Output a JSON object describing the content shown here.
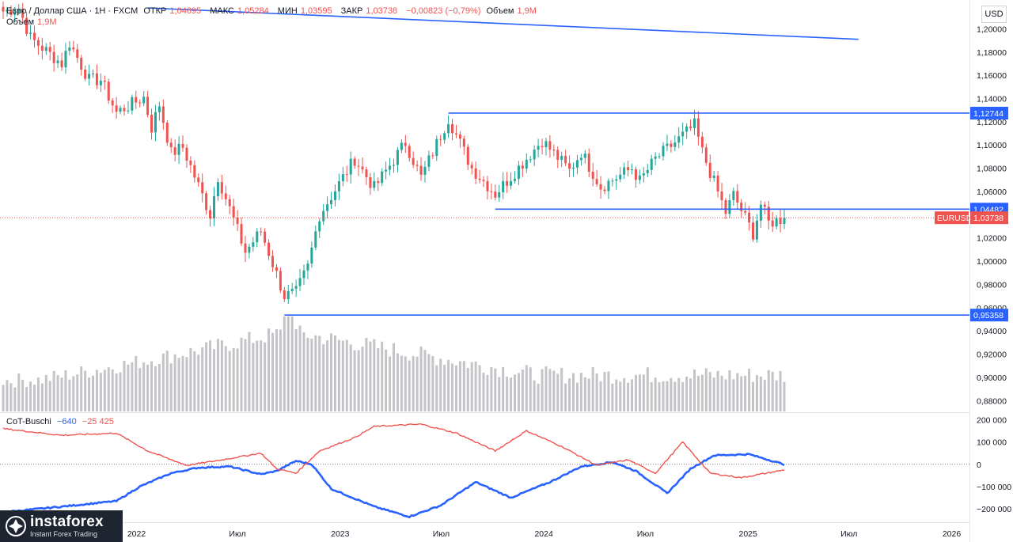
{
  "header": {
    "symbol": "Евро / Доллар США · 1Н · FXCM",
    "open_label": "ОТКР",
    "open": "1,04695",
    "high_label": "МАКС",
    "high": "1,05284",
    "low_label": "МИН",
    "low": "1,03595",
    "close_label": "ЗАКР",
    "close": "1,03738",
    "change": "−0,00823 (−0,79%)",
    "volume_label": "Объем",
    "volume": "1,9M",
    "volume_line_label": "Объем",
    "volume_line_value": "1,9M"
  },
  "currency": "USD",
  "indicator": {
    "name": "CoT-Buschi",
    "value_blue": "−640",
    "value_red": "−25 425"
  },
  "brand": {
    "name": "instaforex",
    "tagline": "Instant Forex Trading"
  },
  "colors": {
    "up": "#26a69a",
    "down": "#ef5350",
    "level_line": "#2962ff",
    "volume": "#c4c4c8",
    "cot_blue": "#2962ff",
    "cot_red": "#ef5350"
  },
  "chart_data": [
    {
      "type": "candlestick",
      "title": "EURUSD",
      "x_ticks": [
        "Июл",
        "2022",
        "Июл",
        "2023",
        "Июл",
        "2024",
        "Июл",
        "2025",
        "Июл",
        "2026"
      ],
      "y_ticks": [
        "1,20000",
        "1,18000",
        "1,16000",
        "1,14000",
        "1,12000",
        "1,10000",
        "1,08000",
        "1,06000",
        "1,04000",
        "1,02000",
        "1,00000",
        "0,98000",
        "0,96000",
        "0,94000",
        "0,92000",
        "0,90000",
        "0,88000"
      ],
      "ylim": [
        0.872,
        1.218
      ],
      "close_anchors": [
        [
          "2021-05-07",
          1.215
        ],
        [
          "2021-06-04",
          1.218
        ],
        [
          "2021-06-25",
          1.192
        ],
        [
          "2021-08-20",
          1.17
        ],
        [
          "2021-09-03",
          1.188
        ],
        [
          "2021-10-08",
          1.156
        ],
        [
          "2021-10-29",
          1.156
        ],
        [
          "2021-11-26",
          1.128
        ],
        [
          "2022-01-14",
          1.141
        ],
        [
          "2022-01-28",
          1.115
        ],
        [
          "2022-02-11",
          1.135
        ],
        [
          "2022-03-04",
          1.093
        ],
        [
          "2022-03-25",
          1.098
        ],
        [
          "2022-05-13",
          1.04
        ],
        [
          "2022-05-27",
          1.073
        ],
        [
          "2022-07-15",
          1.008
        ],
        [
          "2022-08-12",
          1.026
        ],
        [
          "2022-09-23",
          0.97
        ],
        [
          "2022-10-14",
          0.973
        ],
        [
          "2022-11-04",
          0.995
        ],
        [
          "2022-11-25",
          1.04
        ],
        [
          "2023-01-27",
          1.088
        ],
        [
          "2023-03-03",
          1.063
        ],
        [
          "2023-04-28",
          1.102
        ],
        [
          "2023-05-26",
          1.072
        ],
        [
          "2023-07-14",
          1.123
        ],
        [
          "2023-08-25",
          1.08
        ],
        [
          "2023-10-06",
          1.058
        ],
        [
          "2023-11-03",
          1.073
        ],
        [
          "2023-12-29",
          1.104
        ],
        [
          "2024-02-16",
          1.078
        ],
        [
          "2024-03-08",
          1.094
        ],
        [
          "2024-04-12",
          1.064
        ],
        [
          "2024-06-07",
          1.08
        ],
        [
          "2024-06-21",
          1.069
        ],
        [
          "2024-07-19",
          1.088
        ],
        [
          "2024-08-30",
          1.105
        ],
        [
          "2024-09-27",
          1.117
        ],
        [
          "2024-10-11",
          1.094
        ],
        [
          "2024-11-22",
          1.042
        ],
        [
          "2024-12-06",
          1.057
        ],
        [
          "2025-01-10",
          1.024
        ],
        [
          "2025-01-24",
          1.049
        ],
        [
          "2025-02-07",
          1.033
        ],
        [
          "2025-03-07",
          1.037
        ]
      ],
      "last_close": 1.03738,
      "series_label": "EURUSD",
      "levels": [
        {
          "label": "1,12744",
          "value": 1.12744,
          "from": "2023-07-14"
        },
        {
          "label": "1,04482",
          "value": 1.04482,
          "from": "2023-10-06"
        },
        {
          "label": "0,95358",
          "value": 0.95358,
          "from": "2022-09-23"
        }
      ],
      "trendline": [
        [
          "2022-01-21",
          1.218
        ],
        [
          "2025-07-18",
          1.191
        ]
      ],
      "volume": {
        "shape": "rises from low 2021 to a peak around Sep-Oct 2022, then stays mid-level",
        "peak_date": "2022-09-30"
      }
    },
    {
      "type": "line",
      "title": "CoT-Buschi",
      "y_ticks": [
        "200 000",
        "100 000",
        "0",
        "−100 000",
        "−200 000"
      ],
      "ylim": [
        -260000,
        230000
      ],
      "series": [
        {
          "name": "blue",
          "anchors": [
            [
              "2021-05-07",
              -215000
            ],
            [
              "2021-08-20",
              -190000
            ],
            [
              "2021-11-26",
              -165000
            ],
            [
              "2022-01-07",
              -100000
            ],
            [
              "2022-03-04",
              -40000
            ],
            [
              "2022-04-22",
              -15000
            ],
            [
              "2022-06-17",
              -10000
            ],
            [
              "2022-08-12",
              -45000
            ],
            [
              "2022-09-09",
              -30000
            ],
            [
              "2022-10-14",
              15000
            ],
            [
              "2022-11-11",
              0
            ],
            [
              "2022-12-16",
              -110000
            ],
            [
              "2023-03-03",
              -190000
            ],
            [
              "2023-05-05",
              -235000
            ],
            [
              "2023-06-30",
              -185000
            ],
            [
              "2023-09-01",
              -80000
            ],
            [
              "2023-11-03",
              -150000
            ],
            [
              "2024-01-12",
              -80000
            ],
            [
              "2024-03-08",
              -10000
            ],
            [
              "2024-05-03",
              10000
            ],
            [
              "2024-06-14",
              -30000
            ],
            [
              "2024-08-09",
              -130000
            ],
            [
              "2024-09-20",
              -20000
            ],
            [
              "2024-11-01",
              40000
            ],
            [
              "2025-01-03",
              45000
            ],
            [
              "2025-03-07",
              -640
            ]
          ]
        },
        {
          "name": "red",
          "anchors": [
            [
              "2021-05-07",
              160000
            ],
            [
              "2021-08-20",
              130000
            ],
            [
              "2021-11-26",
              140000
            ],
            [
              "2022-01-21",
              60000
            ],
            [
              "2022-04-01",
              -5000
            ],
            [
              "2022-06-03",
              20000
            ],
            [
              "2022-08-12",
              50000
            ],
            [
              "2022-09-09",
              -20000
            ],
            [
              "2022-10-14",
              -40000
            ],
            [
              "2022-11-25",
              60000
            ],
            [
              "2023-01-27",
              120000
            ],
            [
              "2023-03-03",
              170000
            ],
            [
              "2023-05-26",
              180000
            ],
            [
              "2023-07-28",
              140000
            ],
            [
              "2023-10-06",
              60000
            ],
            [
              "2023-12-01",
              150000
            ],
            [
              "2024-02-02",
              80000
            ],
            [
              "2024-04-05",
              -5000
            ],
            [
              "2024-05-31",
              20000
            ],
            [
              "2024-07-19",
              -40000
            ],
            [
              "2024-09-06",
              100000
            ],
            [
              "2024-10-25",
              -40000
            ],
            [
              "2024-12-20",
              -60000
            ],
            [
              "2025-03-07",
              -25425
            ]
          ]
        }
      ]
    }
  ]
}
